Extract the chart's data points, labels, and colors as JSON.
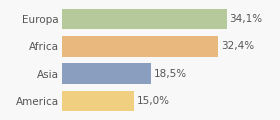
{
  "categories": [
    "Europa",
    "Africa",
    "Asia",
    "America"
  ],
  "values": [
    34.1,
    32.4,
    18.5,
    15.0
  ],
  "labels": [
    "34,1%",
    "32,4%",
    "18,5%",
    "15,0%"
  ],
  "colors": [
    "#b5c99a",
    "#e8b87e",
    "#8a9fc0",
    "#f0d080"
  ],
  "xlim": [
    0,
    44
  ],
  "background_color": "#f8f8f8",
  "bar_height": 0.75,
  "label_fontsize": 7.5,
  "tick_fontsize": 7.5
}
